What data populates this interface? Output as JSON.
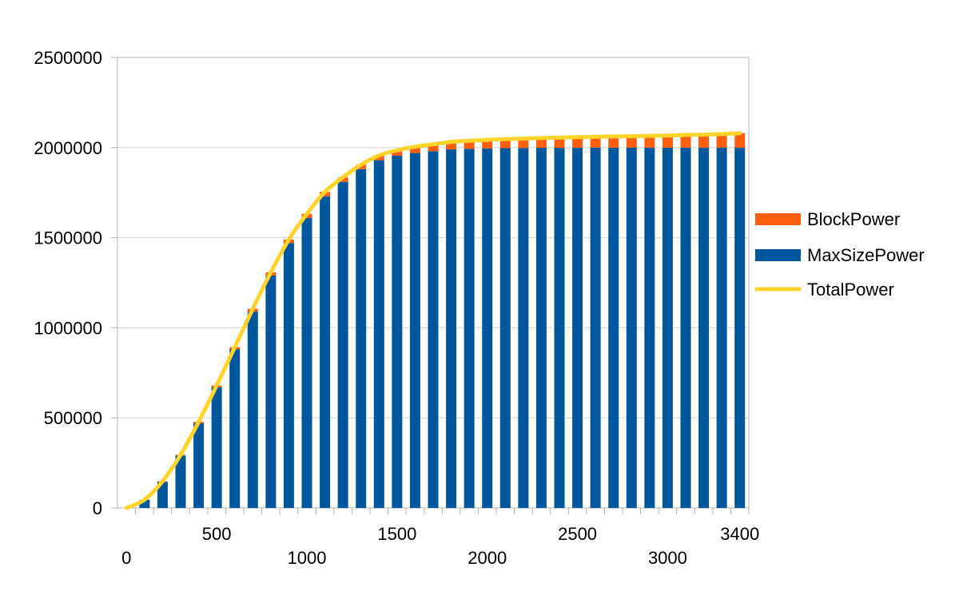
{
  "chart_data": {
    "type": "bar",
    "stacked": true,
    "title": "",
    "xlabel": "",
    "ylabel": "",
    "x": [
      0,
      100,
      200,
      300,
      400,
      500,
      600,
      700,
      800,
      900,
      1000,
      1100,
      1200,
      1300,
      1400,
      1500,
      1600,
      1700,
      1800,
      1900,
      2000,
      2100,
      2200,
      2300,
      2400,
      2500,
      2600,
      2700,
      2800,
      2900,
      3000,
      3100,
      3200,
      3300,
      3400
    ],
    "series": [
      {
        "name": "MaxSizePower",
        "kind": "bar",
        "color": "#00579e",
        "values": [
          0,
          45000,
          145000,
          290000,
          470000,
          670000,
          880000,
          1090000,
          1290000,
          1470000,
          1610000,
          1730000,
          1810000,
          1880000,
          1930000,
          1955000,
          1970000,
          1980000,
          1990000,
          1993000,
          1995000,
          1997000,
          1998000,
          1999000,
          1999000,
          2000000,
          2000000,
          2000000,
          2000000,
          2000000,
          2000000,
          2000000,
          2000000,
          2000000,
          2000000
        ]
      },
      {
        "name": "BlockPower",
        "kind": "bar",
        "color": "#ff5e0e",
        "values": [
          0,
          1000,
          3000,
          5000,
          8000,
          10000,
          12000,
          15000,
          18000,
          20000,
          22000,
          24000,
          25000,
          25000,
          26000,
          30000,
          35000,
          38000,
          42000,
          45000,
          48000,
          50000,
          52000,
          54000,
          56000,
          58000,
          60000,
          62000,
          63000,
          65000,
          67000,
          70000,
          72000,
          75000,
          80000
        ]
      },
      {
        "name": "TotalPower",
        "kind": "line",
        "color": "#ffd42a",
        "values": [
          0,
          46000,
          148000,
          295000,
          478000,
          680000,
          892000,
          1105000,
          1308000,
          1490000,
          1632000,
          1754000,
          1835000,
          1905000,
          1956000,
          1985000,
          2005000,
          2018000,
          2032000,
          2038000,
          2043000,
          2047000,
          2050000,
          2053000,
          2055000,
          2058000,
          2060000,
          2062000,
          2063000,
          2065000,
          2067000,
          2070000,
          2072000,
          2075000,
          2080000
        ]
      }
    ],
    "ylim": [
      0,
      2500000
    ],
    "y_ticks": [
      "0",
      "500000",
      "1000000",
      "1500000",
      "2000000",
      "2500000"
    ],
    "x_tick_labels": [
      {
        "value": 0,
        "label": "0"
      },
      {
        "value": 500,
        "label": "500"
      },
      {
        "value": 1000,
        "label": "1000"
      },
      {
        "value": 1500,
        "label": "1500"
      },
      {
        "value": 2000,
        "label": "2000"
      },
      {
        "value": 2500,
        "label": "2500"
      },
      {
        "value": 3000,
        "label": "3000"
      },
      {
        "value": 3400,
        "label": "3400"
      }
    ],
    "grid": true,
    "legend": {
      "position": "right",
      "entries": [
        "BlockPower",
        "MaxSizePower",
        "TotalPower"
      ]
    }
  }
}
